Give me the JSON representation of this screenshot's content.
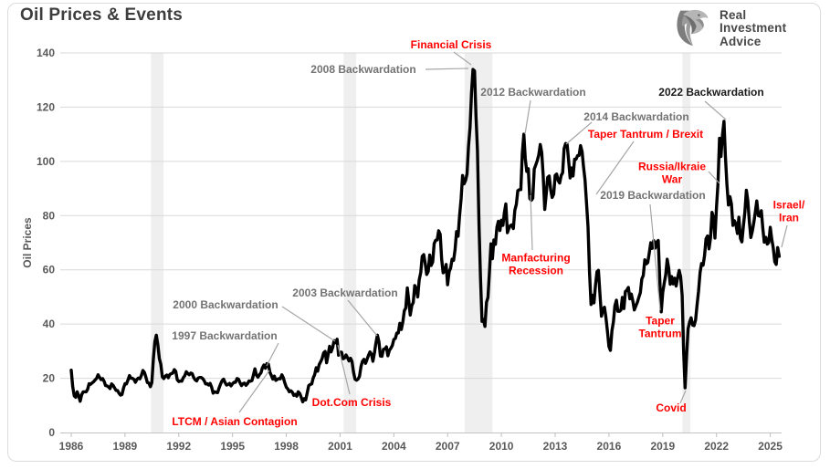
{
  "header": {
    "title": "Oil Prices & Events"
  },
  "logo": {
    "lines": [
      "Real",
      "Investment",
      "Advice"
    ]
  },
  "chart_data": {
    "type": "line",
    "title": "Oil Prices & Events",
    "xlabel": "",
    "ylabel": "Oil Prices",
    "ylim": [
      0,
      140
    ],
    "xlim": [
      1985.4,
      2025.65
    ],
    "y_ticks": [
      0,
      20,
      40,
      60,
      80,
      100,
      120,
      140
    ],
    "x_ticks": [
      1986,
      1989,
      1992,
      1995,
      1998,
      2001,
      2004,
      2007,
      2010,
      2013,
      2016,
      2019,
      2022,
      2025
    ],
    "grid": "horizontal",
    "legend": "none",
    "line_color": "#000000",
    "recession_band_color": "#efefef",
    "recession_bands_years": [
      [
        1990.45,
        1991.15
      ],
      [
        2001.2,
        2001.9
      ],
      [
        2007.95,
        2009.5
      ],
      [
        2020.1,
        2020.55
      ]
    ],
    "series": {
      "name": "Oil Prices",
      "start_year": 1986,
      "monthly": [
        [
          23.0,
          17.0,
          13.5,
          13.0,
          15.0,
          13.5,
          11.5,
          14.0,
          15.0,
          15.0,
          15.0,
          16.0
        ],
        [
          18.0,
          17.8,
          18.3,
          18.7,
          19.4,
          20.0,
          21.3,
          20.3,
          19.5,
          19.9,
          18.9,
          17.3
        ],
        [
          17.2,
          16.8,
          16.2,
          17.9,
          17.4,
          16.5,
          15.5,
          15.5,
          14.5,
          13.8,
          14.0,
          16.4
        ],
        [
          18.0,
          17.9,
          19.4,
          21.0,
          20.0,
          20.0,
          19.6,
          18.5,
          19.6,
          20.1,
          19.8,
          21.1
        ],
        [
          22.9,
          22.1,
          20.4,
          18.4,
          18.2,
          16.9,
          18.4,
          27.3,
          33.5,
          35.9,
          32.3,
          27.3
        ],
        [
          25.2,
          20.5,
          19.9,
          20.8,
          21.2,
          20.2,
          21.4,
          21.7,
          21.9,
          23.2,
          22.5,
          19.5
        ],
        [
          18.8,
          19.0,
          18.9,
          20.2,
          20.9,
          22.4,
          21.8,
          21.3,
          21.9,
          21.7,
          20.3,
          19.4
        ],
        [
          19.0,
          20.1,
          20.3,
          20.3,
          19.9,
          19.1,
          17.9,
          18.0,
          17.5,
          18.1,
          16.7,
          14.5
        ],
        [
          15.0,
          14.8,
          14.7,
          16.4,
          17.9,
          19.1,
          19.7,
          18.4,
          17.5,
          17.7,
          18.1,
          17.2
        ],
        [
          18.0,
          18.5,
          18.5,
          19.9,
          19.7,
          18.4,
          17.3,
          18.0,
          18.2,
          17.4,
          18.0,
          19.0
        ],
        [
          18.9,
          19.1,
          21.3,
          23.5,
          21.2,
          20.4,
          21.3,
          22.0,
          23.9,
          24.9,
          23.7,
          25.4
        ],
        [
          25.2,
          22.2,
          21.0,
          19.7,
          20.8,
          19.2,
          19.6,
          19.9,
          19.8,
          21.3,
          20.2,
          18.3
        ],
        [
          16.7,
          16.1,
          15.0,
          15.4,
          14.9,
          13.7,
          14.1,
          13.4,
          15.0,
          14.4,
          13.0,
          11.3
        ],
        [
          12.5,
          12.0,
          14.7,
          17.3,
          17.7,
          17.9,
          20.1,
          21.3,
          23.9,
          22.6,
          25.0,
          26.1
        ],
        [
          27.3,
          29.4,
          29.9,
          25.7,
          28.8,
          31.8,
          29.7,
          31.3,
          33.9,
          33.1,
          34.4,
          28.5
        ],
        [
          29.6,
          29.6,
          27.2,
          27.5,
          28.6,
          27.6,
          26.4,
          27.4,
          26.2,
          22.2,
          19.7,
          19.3
        ],
        [
          19.7,
          20.7,
          24.4,
          26.3,
          27.0,
          25.5,
          26.9,
          28.4,
          29.7,
          28.9,
          26.3,
          29.4
        ],
        [
          33.0,
          35.9,
          33.5,
          28.2,
          28.1,
          30.7,
          30.8,
          31.6,
          28.3,
          30.3,
          31.1,
          32.1
        ],
        [
          34.3,
          34.7,
          36.7,
          36.7,
          40.3,
          38.0,
          40.8,
          44.9,
          45.9,
          53.3,
          48.5,
          43.3
        ],
        [
          46.8,
          48.0,
          54.2,
          53.0,
          50.0,
          56.3,
          59.0,
          65.0,
          65.6,
          62.4,
          58.3,
          59.4
        ],
        [
          65.5,
          61.6,
          62.9,
          69.7,
          70.9,
          71.0,
          74.4,
          73.1,
          63.9,
          58.9,
          59.4,
          62.0
        ],
        [
          54.5,
          59.3,
          60.6,
          63.9,
          63.5,
          67.5,
          74.1,
          72.4,
          79.9,
          86.2,
          94.8,
          91.7
        ],
        [
          93.0,
          95.4,
          105.5,
          112.6,
          125.4,
          133.9,
          133.4,
          116.7,
          104.1,
          76.7,
          57.3,
          41.0
        ],
        [
          41.7,
          39.1,
          48.0,
          49.8,
          59.0,
          69.6,
          64.1,
          71.0,
          69.4,
          75.7,
          77.9,
          74.5
        ],
        [
          78.3,
          76.4,
          81.2,
          84.3,
          73.7,
          75.3,
          76.3,
          76.6,
          75.2,
          81.9,
          84.2,
          89.2
        ],
        [
          89.6,
          89.6,
          102.9,
          110.0,
          101.0,
          96.3,
          97.3,
          86.3,
          85.6,
          86.4,
          97.2,
          98.6
        ],
        [
          100.3,
          102.3,
          106.2,
          103.3,
          94.7,
          82.3,
          87.9,
          94.1,
          94.6,
          89.5,
          86.7,
          87.9
        ],
        [
          94.8,
          95.3,
          92.9,
          92.0,
          94.8,
          95.8,
          104.7,
          106.6,
          106.3,
          100.5,
          93.9,
          97.6
        ],
        [
          94.6,
          100.8,
          100.8,
          102.1,
          102.2,
          105.8,
          103.6,
          97.9,
          93.2,
          84.4,
          75.8,
          59.3
        ],
        [
          47.2,
          50.6,
          47.8,
          54.4,
          59.3,
          59.8,
          50.9,
          42.9,
          45.5,
          46.2,
          42.4,
          37.2
        ],
        [
          31.7,
          30.3,
          37.6,
          40.8,
          46.7,
          48.8,
          44.7,
          44.7,
          45.2,
          49.8,
          45.7,
          52.0
        ],
        [
          52.5,
          53.5,
          49.3,
          51.1,
          48.5,
          45.2,
          46.6,
          48.0,
          49.8,
          51.6,
          56.6,
          57.9
        ],
        [
          63.7,
          62.2,
          62.7,
          66.3,
          70.0,
          67.9,
          70.8,
          68.0,
          70.2,
          70.8,
          57.0,
          44.5
        ],
        [
          51.6,
          55.0,
          58.2,
          63.9,
          60.7,
          54.7,
          57.5,
          54.8,
          56.9,
          54.0,
          57.0,
          59.8
        ],
        [
          57.5,
          50.5,
          29.9,
          16.5,
          28.6,
          38.3,
          40.7,
          42.3,
          39.6,
          39.4,
          41.5,
          47.0
        ],
        [
          52.0,
          59.0,
          62.3,
          61.7,
          65.2,
          71.4,
          72.5,
          67.7,
          71.6,
          81.2,
          79.2,
          71.7
        ],
        [
          83.2,
          91.6,
          108.5,
          101.8,
          109.6,
          114.8,
          101.6,
          91.5,
          83.9,
          87.0,
          84.4,
          76.4
        ],
        [
          78.1,
          76.9,
          73.4,
          79.4,
          71.6,
          70.3,
          76.0,
          81.4,
          89.4,
          85.5,
          77.7,
          71.9
        ],
        [
          74.2,
          77.5,
          81.3,
          85.4,
          80.0,
          79.8,
          81.8,
          75.4,
          70.2,
          72.0,
          69.5,
          70.1
        ],
        [
          75.7,
          71.3,
          68.2,
          63.0,
          62.0,
          68.2,
          65.0
        ]
      ]
    },
    "annotations": [
      {
        "lines": [
          "1997 Backwardation"
        ],
        "color": "#737373",
        "cx": 246,
        "cy": 368,
        "leader": [
          305,
          376,
          292,
          401
        ]
      },
      {
        "lines": [
          "2000 Backwardation"
        ],
        "color": "#737373",
        "cx": 247,
        "cy": 334,
        "leader": [
          309,
          336,
          367,
          374
        ]
      },
      {
        "lines": [
          "2003 Backwardation"
        ],
        "color": "#737373",
        "cx": 378,
        "cy": 321,
        "leader": [
          381,
          329,
          413,
          368
        ]
      },
      {
        "lines": [
          "2008 Backwardation"
        ],
        "color": "#737373",
        "cx": 398,
        "cy": 76,
        "leader": [
          466,
          76,
          513,
          75
        ]
      },
      {
        "lines": [
          "2012 Backwardation"
        ],
        "color": "#737373",
        "cx": 584,
        "cy": 101,
        "leader": [
          581,
          110,
          575,
          147
        ]
      },
      {
        "lines": [
          "2014 Backwardation"
        ],
        "color": "#737373",
        "cx": 697,
        "cy": 128,
        "leader": [
          648,
          134,
          620,
          158
        ]
      },
      {
        "lines": [
          "2019 Backwardation"
        ],
        "color": "#737373",
        "cx": 715,
        "cy": 214,
        "leader": [
          712,
          224,
          723,
          340
        ]
      },
      {
        "lines": [
          "2022 Backwardation"
        ],
        "color": "#1a1a1a",
        "cx": 779,
        "cy": 101,
        "leader": [
          772,
          111,
          795,
          131
        ]
      },
      {
        "lines": [
          "Financial Crisis"
        ],
        "color": "#ff0000",
        "cx": 494,
        "cy": 49,
        "leader": [
          497,
          57,
          516,
          71
        ]
      },
      {
        "lines": [
          "LTCM / Asian Contagion"
        ],
        "color": "#ff0000",
        "cx": 257,
        "cy": 462,
        "leader": [
          262,
          452,
          295,
          406
        ]
      },
      {
        "lines": [
          "Dot.Com Crisis"
        ],
        "color": "#ff0000",
        "cx": 385,
        "cy": 441,
        "leader": [
          383,
          432,
          370,
          378
        ]
      },
      {
        "lines": [
          "Manfacturing",
          "Recession"
        ],
        "color": "#ff0000",
        "cx": 587,
        "cy": 290,
        "leader": [
          583,
          274,
          581,
          214
        ]
      },
      {
        "lines": [
          "Taper Tantrum / Brexit"
        ],
        "color": "#ff0000",
        "cx": 707,
        "cy": 147,
        "leader": [
          694,
          155,
          653,
          213
        ]
      },
      {
        "lines": [
          "Russia/Ikraie",
          "War"
        ],
        "color": "#ff0000",
        "cx": 736,
        "cy": 190,
        "leader": [
          776,
          188,
          788,
          201
        ]
      },
      {
        "lines": [
          "Taper",
          "Tantrum"
        ],
        "color": "#ff0000",
        "cx": 723,
        "cy": 359,
        "leader": null
      },
      {
        "lines": [
          "Covid"
        ],
        "color": "#ff0000",
        "cx": 735,
        "cy": 447,
        "leader": [
          745,
          442,
          751,
          428
        ]
      },
      {
        "lines": [
          "Israel/",
          "Iran"
        ],
        "color": "#ff0000",
        "cx": 864,
        "cy": 232,
        "leader": [
          862,
          247,
          856,
          271
        ]
      }
    ],
    "axis_label_color": "#595959",
    "gridline_color": "#d9d9d9",
    "leader_line_color": "#a6a6a6"
  }
}
